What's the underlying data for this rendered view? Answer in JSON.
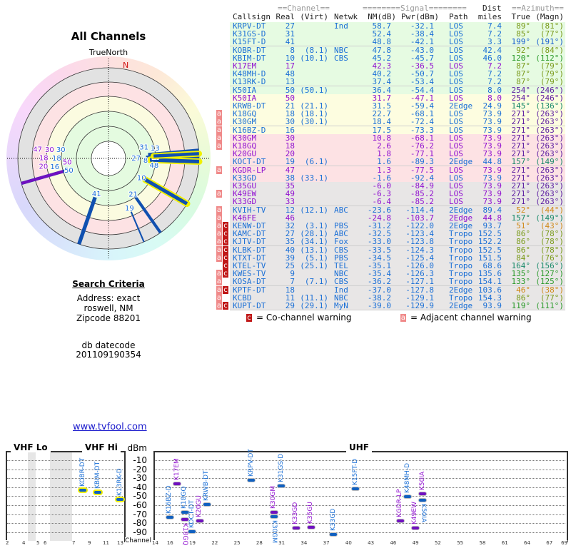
{
  "polar": {
    "title": "All Channels",
    "north_label": "TrueNorth",
    "n_marker": "N"
  },
  "search": {
    "heading": "Search Criteria",
    "address": "Address: exact",
    "city": "roswell, NM",
    "zipcode": "Zipcode 88201",
    "db_label": "db datecode",
    "db_value": "201109190354"
  },
  "link": "www.tvfool.com",
  "table": {
    "group_channel": "==Channel==",
    "group_signal": "========Signal========",
    "group_dist": "Dist",
    "group_azimuth": "==Azimuth==",
    "headers": {
      "callsign": "Callsign",
      "real": "Real",
      "virt": "(Virt)",
      "netwk": "Netwk",
      "nm": "NM(dB)",
      "pwr": "Pwr(dBm)",
      "path": "Path",
      "dist": "miles",
      "true": "True",
      "magn": "(Magn)"
    },
    "colors": {
      "blue": "#1a6fd6",
      "purple": "#9010d0",
      "olive": "#7a9a1a",
      "green": "#2a9a2a",
      "violet": "#5a1aa0",
      "teal": "#1a8a6a",
      "orange": "#d08a1a",
      "az_blue": "#1a5fd0"
    },
    "bands": {
      "green": "#e6fbe2",
      "yellow": "#fdfde0",
      "pink": "#fde2e4",
      "grey": "#e8e6e6"
    },
    "rows": [
      {
        "a": "",
        "c": "",
        "callsign": "KRPV-DT",
        "real": "27",
        "virt": "",
        "netwk": "Ind",
        "nm": "58.7",
        "pwr": "-32.1",
        "path": "LOS",
        "dist": "7.4",
        "true": "89°",
        "magn": "(81°)",
        "color": "blue",
        "az": "olive",
        "band": "green"
      },
      {
        "a": "",
        "c": "",
        "callsign": "K31GS-D",
        "real": "31",
        "virt": "",
        "netwk": "",
        "nm": "52.4",
        "pwr": "-38.4",
        "path": "LOS",
        "dist": "7.2",
        "true": "85°",
        "magn": "(77°)",
        "color": "blue",
        "az": "olive",
        "band": "green"
      },
      {
        "a": "",
        "c": "",
        "callsign": "K15FT-D",
        "real": "41",
        "virt": "",
        "netwk": "",
        "nm": "48.8",
        "pwr": "-42.1",
        "path": "LOS",
        "dist": "3.3",
        "true": "199°",
        "magn": "(191°)",
        "color": "blue",
        "az": "az_blue",
        "band": "green"
      },
      {
        "a": "",
        "c": "",
        "callsign": "KOBR-DT",
        "real": "8",
        "virt": "(8.1)",
        "netwk": "NBC",
        "nm": "47.8",
        "pwr": "-43.0",
        "path": "LOS",
        "dist": "42.4",
        "true": "92°",
        "magn": "(84°)",
        "color": "blue",
        "az": "olive",
        "band": "green"
      },
      {
        "a": "",
        "c": "",
        "callsign": "KBIM-DT",
        "real": "10",
        "virt": "(10.1)",
        "netwk": "CBS",
        "nm": "45.2",
        "pwr": "-45.7",
        "path": "LOS",
        "dist": "46.0",
        "true": "120°",
        "magn": "(112°)",
        "color": "blue",
        "az": "green",
        "band": "green"
      },
      {
        "a": "",
        "c": "",
        "callsign": "K17EM",
        "real": "17",
        "virt": "",
        "netwk": "",
        "nm": "42.3",
        "pwr": "-36.5",
        "path": "LOS",
        "dist": "7.2",
        "true": "87°",
        "magn": "(79°)",
        "color": "purple",
        "az": "olive",
        "band": "green"
      },
      {
        "a": "",
        "c": "",
        "callsign": "K48MH-D",
        "real": "48",
        "virt": "",
        "netwk": "",
        "nm": "40.2",
        "pwr": "-50.7",
        "path": "LOS",
        "dist": "7.2",
        "true": "87°",
        "magn": "(79°)",
        "color": "blue",
        "az": "olive",
        "band": "green"
      },
      {
        "a": "",
        "c": "",
        "callsign": "K13RK-D",
        "real": "13",
        "virt": "",
        "netwk": "",
        "nm": "37.4",
        "pwr": "-53.4",
        "path": "LOS",
        "dist": "7.2",
        "true": "87°",
        "magn": "(79°)",
        "color": "blue",
        "az": "olive",
        "band": "green"
      },
      {
        "a": "",
        "c": "",
        "callsign": "K50IA",
        "real": "50",
        "virt": "(50.1)",
        "netwk": "",
        "nm": "36.4",
        "pwr": "-54.4",
        "path": "LOS",
        "dist": "8.0",
        "true": "254°",
        "magn": "(246°)",
        "color": "blue",
        "az": "violet",
        "band": "green"
      },
      {
        "a": "",
        "c": "",
        "callsign": "K50IA",
        "real": "50",
        "virt": "",
        "netwk": "",
        "nm": "31.7",
        "pwr": "-47.1",
        "path": "LOS",
        "dist": "8.0",
        "true": "254°",
        "magn": "(246°)",
        "color": "purple",
        "az": "violet",
        "band": "yellow"
      },
      {
        "a": "",
        "c": "",
        "callsign": "KRWB-DT",
        "real": "21",
        "virt": "(21.1)",
        "netwk": "",
        "nm": "31.5",
        "pwr": "-59.4",
        "path": "2Edge",
        "dist": "24.9",
        "true": "145°",
        "magn": "(136°)",
        "color": "blue",
        "az": "teal",
        "band": "yellow"
      },
      {
        "a": "a",
        "c": "",
        "callsign": "K18GQ",
        "real": "18",
        "virt": "(18.1)",
        "netwk": "",
        "nm": "22.7",
        "pwr": "-68.1",
        "path": "LOS",
        "dist": "73.9",
        "true": "271°",
        "magn": "(263°)",
        "color": "blue",
        "az": "violet",
        "band": "yellow"
      },
      {
        "a": "a",
        "c": "",
        "callsign": "K30GM",
        "real": "30",
        "virt": "(30.1)",
        "netwk": "",
        "nm": "18.4",
        "pwr": "-72.4",
        "path": "LOS",
        "dist": "73.9",
        "true": "271°",
        "magn": "(263°)",
        "color": "blue",
        "az": "violet",
        "band": "yellow"
      },
      {
        "a": "a",
        "c": "",
        "callsign": "K16BZ-D",
        "real": "16",
        "virt": "",
        "netwk": "",
        "nm": "17.5",
        "pwr": "-73.3",
        "path": "LOS",
        "dist": "73.9",
        "true": "271°",
        "magn": "(263°)",
        "color": "blue",
        "az": "violet",
        "band": "yellow"
      },
      {
        "a": "a",
        "c": "",
        "callsign": "K30GM",
        "real": "30",
        "virt": "",
        "netwk": "",
        "nm": "10.8",
        "pwr": "-68.1",
        "path": "LOS",
        "dist": "73.9",
        "true": "271°",
        "magn": "(263°)",
        "color": "purple",
        "az": "violet",
        "band": "pink"
      },
      {
        "a": "a",
        "c": "",
        "callsign": "K18GQ",
        "real": "18",
        "virt": "",
        "netwk": "",
        "nm": "2.6",
        "pwr": "-76.2",
        "path": "LOS",
        "dist": "73.9",
        "true": "271°",
        "magn": "(263°)",
        "color": "purple",
        "az": "violet",
        "band": "pink"
      },
      {
        "a": "",
        "c": "",
        "callsign": "K20GU",
        "real": "20",
        "virt": "",
        "netwk": "",
        "nm": "1.8",
        "pwr": "-77.1",
        "path": "LOS",
        "dist": "73.9",
        "true": "271°",
        "magn": "(263°)",
        "color": "purple",
        "az": "violet",
        "band": "pink"
      },
      {
        "a": "",
        "c": "",
        "callsign": "KOCT-DT",
        "real": "19",
        "virt": "(6.1)",
        "netwk": "",
        "nm": "1.6",
        "pwr": "-89.3",
        "path": "2Edge",
        "dist": "44.8",
        "true": "157°",
        "magn": "(149°)",
        "color": "blue",
        "az": "teal",
        "band": "pink"
      },
      {
        "a": "a",
        "c": "",
        "callsign": "KGDR-LP",
        "real": "47",
        "virt": "",
        "netwk": "",
        "nm": "1.3",
        "pwr": "-77.5",
        "path": "LOS",
        "dist": "73.9",
        "true": "271°",
        "magn": "(263°)",
        "color": "purple",
        "az": "violet",
        "band": "pink"
      },
      {
        "a": "",
        "c": "",
        "callsign": "K33GD",
        "real": "38",
        "virt": "(33.1)",
        "netwk": "",
        "nm": "-1.6",
        "pwr": "-92.4",
        "path": "LOS",
        "dist": "73.9",
        "true": "271°",
        "magn": "(263°)",
        "color": "blue",
        "az": "violet",
        "band": "pink"
      },
      {
        "a": "",
        "c": "",
        "callsign": "K35GU",
        "real": "35",
        "virt": "",
        "netwk": "",
        "nm": "-6.0",
        "pwr": "-84.9",
        "path": "LOS",
        "dist": "73.9",
        "true": "271°",
        "magn": "(263°)",
        "color": "purple",
        "az": "violet",
        "band": "grey"
      },
      {
        "a": "a",
        "c": "",
        "callsign": "K49EW",
        "real": "49",
        "virt": "",
        "netwk": "",
        "nm": "-6.3",
        "pwr": "-85.2",
        "path": "LOS",
        "dist": "73.9",
        "true": "271°",
        "magn": "(263°)",
        "color": "purple",
        "az": "violet",
        "band": "grey"
      },
      {
        "a": "",
        "c": "",
        "callsign": "K33GD",
        "real": "33",
        "virt": "",
        "netwk": "",
        "nm": "-6.4",
        "pwr": "-85.2",
        "path": "LOS",
        "dist": "73.9",
        "true": "271°",
        "magn": "(263°)",
        "color": "purple",
        "az": "violet",
        "band": "grey"
      },
      {
        "a": "a",
        "c": "",
        "callsign": "KVIH-TV",
        "real": "12",
        "virt": "(12.1)",
        "netwk": "ABC",
        "nm": "-23.6",
        "pwr": "-114.4",
        "path": "2Edge",
        "dist": "89.4",
        "true": "52°",
        "magn": "(44°)",
        "color": "blue",
        "az": "orange",
        "band": "grey"
      },
      {
        "a": "a",
        "c": "",
        "callsign": "K46FE",
        "real": "46",
        "virt": "",
        "netwk": "",
        "nm": "-24.8",
        "pwr": "-103.7",
        "path": "2Edge",
        "dist": "44.8",
        "true": "157°",
        "magn": "(149°)",
        "color": "purple",
        "az": "teal",
        "band": "grey"
      },
      {
        "a": "a",
        "c": "c",
        "callsign": "KENW-DT",
        "real": "32",
        "virt": "(3.1)",
        "netwk": "PBS",
        "nm": "-31.2",
        "pwr": "-122.0",
        "path": "2Edge",
        "dist": "93.7",
        "true": "51°",
        "magn": "(43°)",
        "color": "blue",
        "az": "orange",
        "band": "grey"
      },
      {
        "a": "a",
        "c": "c",
        "callsign": "KAMC-DT",
        "real": "27",
        "virt": "(28.1)",
        "netwk": "ABC",
        "nm": "-32.5",
        "pwr": "-123.4",
        "path": "Tropo",
        "dist": "152.5",
        "true": "86°",
        "magn": "(78°)",
        "color": "blue",
        "az": "olive",
        "band": "grey"
      },
      {
        "a": "a",
        "c": "c",
        "callsign": "KJTV-DT",
        "real": "35",
        "virt": "(34.1)",
        "netwk": "Fox",
        "nm": "-33.0",
        "pwr": "-123.8",
        "path": "Tropo",
        "dist": "152.2",
        "true": "86°",
        "magn": "(78°)",
        "color": "blue",
        "az": "olive",
        "band": "grey"
      },
      {
        "a": "a",
        "c": "c",
        "callsign": "KLBK-DT",
        "real": "40",
        "virt": "(13.1)",
        "netwk": "CBS",
        "nm": "-33.5",
        "pwr": "-124.3",
        "path": "Tropo",
        "dist": "152.5",
        "true": "86°",
        "magn": "(78°)",
        "color": "blue",
        "az": "olive",
        "band": "grey"
      },
      {
        "a": "a",
        "c": "c",
        "callsign": "KTXT-DT",
        "real": "39",
        "virt": "(5.1)",
        "netwk": "PBS",
        "nm": "-34.5",
        "pwr": "-125.4",
        "path": "Tropo",
        "dist": "151.5",
        "true": "84°",
        "magn": "(76°)",
        "color": "blue",
        "az": "olive",
        "band": "grey"
      },
      {
        "a": "",
        "c": "c",
        "callsign": "KTEL-TV",
        "real": "25",
        "virt": "(25.1)",
        "netwk": "TEL",
        "nm": "-35.1",
        "pwr": "-126.0",
        "path": "Tropo",
        "dist": "68.6",
        "true": "164°",
        "magn": "(156°)",
        "color": "blue",
        "az": "teal",
        "band": "grey"
      },
      {
        "a": "a",
        "c": "c",
        "callsign": "KWES-TV",
        "real": "9",
        "virt": "",
        "netwk": "NBC",
        "nm": "-35.4",
        "pwr": "-126.3",
        "path": "Tropo",
        "dist": "135.6",
        "true": "135°",
        "magn": "(127°)",
        "color": "blue",
        "az": "green",
        "band": "grey"
      },
      {
        "a": "a",
        "c": "",
        "callsign": "KOSA-DT",
        "real": "7",
        "virt": "(7.1)",
        "netwk": "CBS",
        "nm": "-36.2",
        "pwr": "-127.1",
        "path": "Tropo",
        "dist": "154.1",
        "true": "133°",
        "magn": "(125°)",
        "color": "blue",
        "az": "green",
        "band": "grey"
      },
      {
        "a": "a",
        "c": "c",
        "callsign": "KPTF-DT",
        "real": "18",
        "virt": "",
        "netwk": "Ind",
        "nm": "-37.0",
        "pwr": "-127.8",
        "path": "2Edge",
        "dist": "103.6",
        "true": "46°",
        "magn": "(38°)",
        "color": "blue",
        "az": "orange",
        "band": "grey"
      },
      {
        "a": "a",
        "c": "",
        "callsign": "KCBD",
        "real": "11",
        "virt": "(11.1)",
        "netwk": "NBC",
        "nm": "-38.2",
        "pwr": "-129.1",
        "path": "Tropo",
        "dist": "154.3",
        "true": "86°",
        "magn": "(77°)",
        "color": "blue",
        "az": "olive",
        "band": "grey"
      },
      {
        "a": "a",
        "c": "c",
        "callsign": "KUPT-DT",
        "real": "29",
        "virt": "(29.1)",
        "netwk": "MyN",
        "nm": "-39.0",
        "pwr": "-129.9",
        "path": "2Edge",
        "dist": "93.9",
        "true": "119°",
        "magn": "(111°)",
        "color": "blue",
        "az": "green",
        "band": "grey"
      }
    ]
  },
  "legend": {
    "co_glyph": "c",
    "co_label": "= Co-channel warning",
    "adj_glyph": "a",
    "adj_label": "= Adjacent channel warning"
  },
  "chart_data": {
    "type": "scatter",
    "title": "",
    "ylabel": "dBm",
    "xlabel": "Channel",
    "ylim": [
      -95,
      0
    ],
    "yticks": [
      -10,
      -20,
      -30,
      -40,
      -50,
      -60,
      -70,
      -80,
      -90
    ],
    "grid": true,
    "bands": [
      {
        "name": "VHF Lo",
        "xticks": [
          2,
          4,
          5,
          6
        ]
      },
      {
        "name": "VHF Hi",
        "xticks": [
          7,
          9,
          11,
          13
        ]
      },
      {
        "name": "UHF",
        "xticks": [
          14,
          16,
          19,
          22,
          25,
          28,
          31,
          34,
          37,
          40,
          43,
          46,
          49,
          52,
          55,
          58,
          61,
          64,
          67,
          69
        ]
      }
    ],
    "points": [
      {
        "label": "KOBR-DT",
        "channel": 8,
        "dbm": -43.0,
        "color": "blue",
        "highlight": true
      },
      {
        "label": "KBIM-DT",
        "channel": 10,
        "dbm": -45.7,
        "color": "blue",
        "highlight": true
      },
      {
        "label": "K13RK-D",
        "channel": 13,
        "dbm": -53.4,
        "color": "blue",
        "highlight": true
      },
      {
        "label": "K16BZ-D",
        "channel": 16,
        "dbm": -73.3,
        "color": "blue"
      },
      {
        "label": "K17EM",
        "channel": 17,
        "dbm": -36.5,
        "color": "purple"
      },
      {
        "label": "K18GQ",
        "channel": 18,
        "dbm": -68.1,
        "color": "blue"
      },
      {
        "label": "K18GQ",
        "channel": 18,
        "dbm": -76.2,
        "color": "purple"
      },
      {
        "label": "KOCT-DT",
        "channel": 19,
        "dbm": -89.3,
        "color": "blue"
      },
      {
        "label": "K20GU",
        "channel": 20,
        "dbm": -77.1,
        "color": "purple"
      },
      {
        "label": "KRWB-DT",
        "channel": 21,
        "dbm": -59.4,
        "color": "blue"
      },
      {
        "label": "KRPV-DT",
        "channel": 27,
        "dbm": -32.1,
        "color": "blue"
      },
      {
        "label": "K30GM",
        "channel": 30,
        "dbm": -72.4,
        "color": "blue"
      },
      {
        "label": "K30GM",
        "channel": 30,
        "dbm": -68.1,
        "color": "purple"
      },
      {
        "label": "K31GS-D",
        "channel": 31,
        "dbm": -38.4,
        "color": "blue"
      },
      {
        "label": "K33GD",
        "channel": 33,
        "dbm": -85.2,
        "color": "purple"
      },
      {
        "label": "K35GU",
        "channel": 35,
        "dbm": -84.9,
        "color": "purple"
      },
      {
        "label": "K33GD",
        "channel": 38,
        "dbm": -92.4,
        "color": "blue"
      },
      {
        "label": "K15FT-D",
        "channel": 41,
        "dbm": -42.1,
        "color": "blue"
      },
      {
        "label": "KGDR-LP",
        "channel": 47,
        "dbm": -77.5,
        "color": "purple"
      },
      {
        "label": "K48MH-D",
        "channel": 48,
        "dbm": -50.7,
        "color": "blue"
      },
      {
        "label": "K49EW",
        "channel": 49,
        "dbm": -85.2,
        "color": "purple"
      },
      {
        "label": "K50IA",
        "channel": 50,
        "dbm": -54.4,
        "color": "blue"
      },
      {
        "label": "K50IA",
        "channel": 50,
        "dbm": -47.1,
        "color": "purple"
      }
    ]
  }
}
